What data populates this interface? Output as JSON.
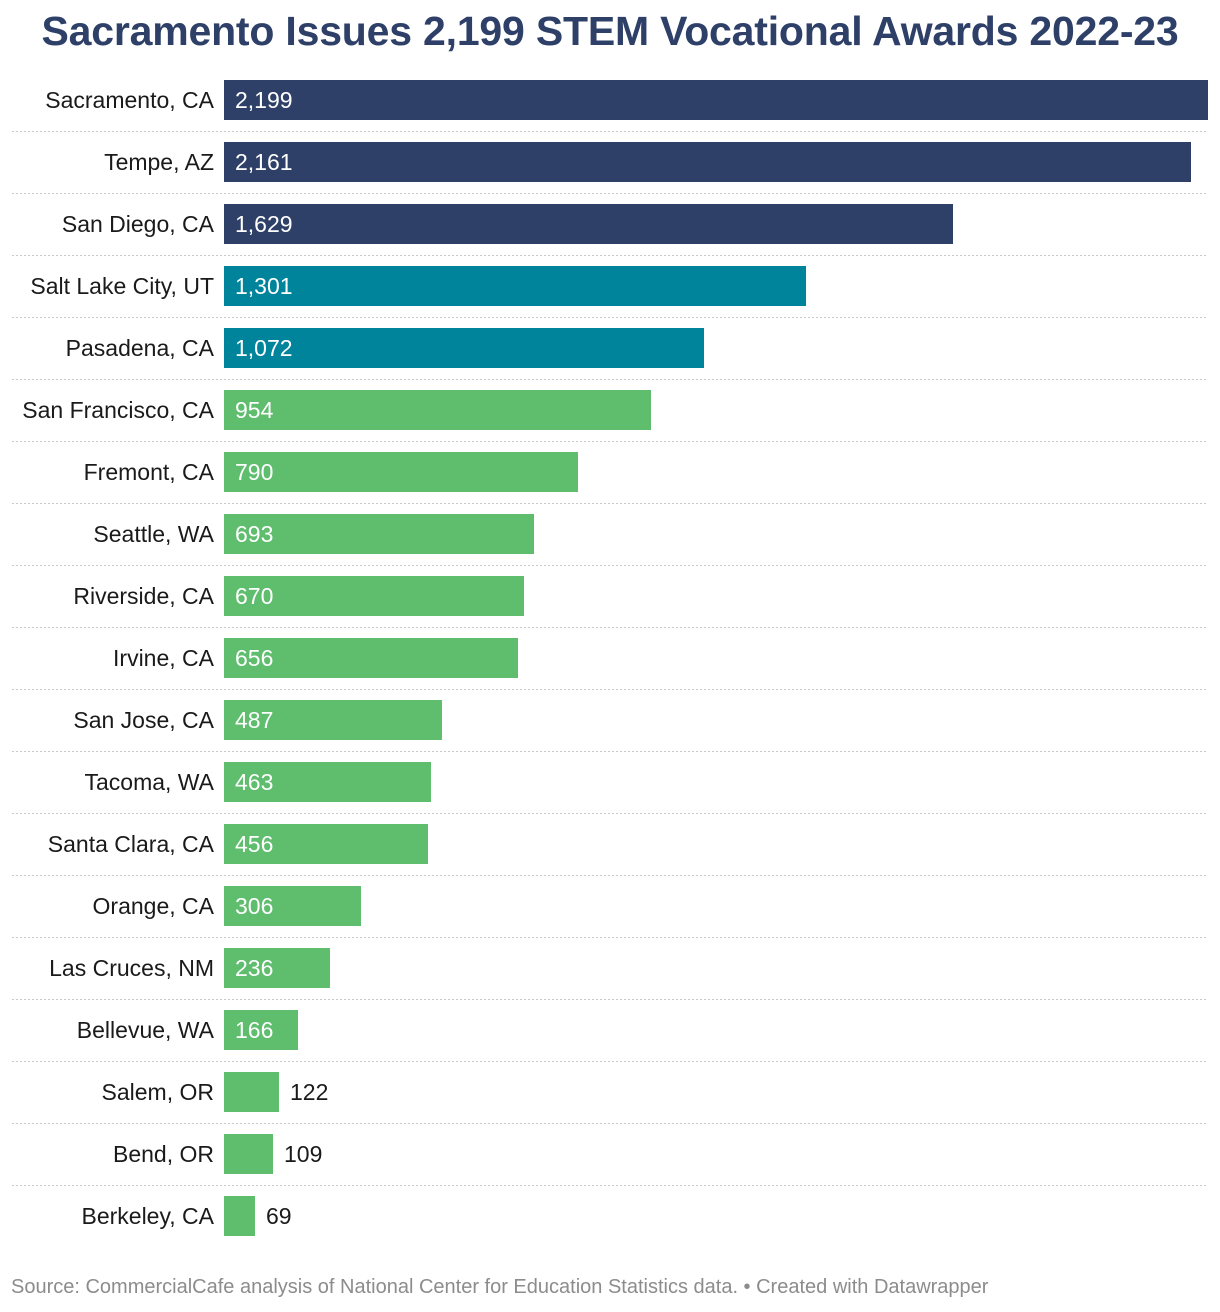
{
  "chart_data": {
    "type": "bar",
    "orientation": "horizontal",
    "title": "Sacramento Issues 2,199 STEM Vocational Awards 2022-23",
    "categories": [
      "Sacramento, CA",
      "Tempe, AZ",
      "San Diego, CA",
      "Salt Lake City, UT",
      "Pasadena, CA",
      "San Francisco, CA",
      "Fremont, CA",
      "Seattle, WA",
      "Riverside, CA",
      "Irvine, CA",
      "San Jose, CA",
      "Tacoma, WA",
      "Santa Clara, CA",
      "Orange, CA",
      "Las Cruces, NM",
      "Bellevue, WA",
      "Salem, OR",
      "Bend, OR",
      "Berkeley, CA"
    ],
    "values": [
      2199,
      2161,
      1629,
      1301,
      1072,
      954,
      790,
      693,
      670,
      656,
      487,
      463,
      456,
      306,
      236,
      166,
      122,
      109,
      69
    ],
    "value_labels": [
      "2,199",
      "2,161",
      "1,629",
      "1,301",
      "1,072",
      "954",
      "790",
      "693",
      "670",
      "656",
      "487",
      "463",
      "456",
      "306",
      "236",
      "166",
      "122",
      "109",
      "69"
    ],
    "color_groups": [
      "navy",
      "navy",
      "navy",
      "teal",
      "teal",
      "green",
      "green",
      "green",
      "green",
      "green",
      "green",
      "green",
      "green",
      "green",
      "green",
      "green",
      "green",
      "green",
      "green"
    ],
    "colors": {
      "navy": "#2e4068",
      "teal": "#00849b",
      "green": "#5fbd6e"
    },
    "xlim": [
      0,
      2199
    ],
    "grid": false,
    "legend": "none"
  },
  "footer": {
    "source": "Source: CommercialCafe analysis of National Center for Education Statistics data. • Created with Datawrapper"
  }
}
